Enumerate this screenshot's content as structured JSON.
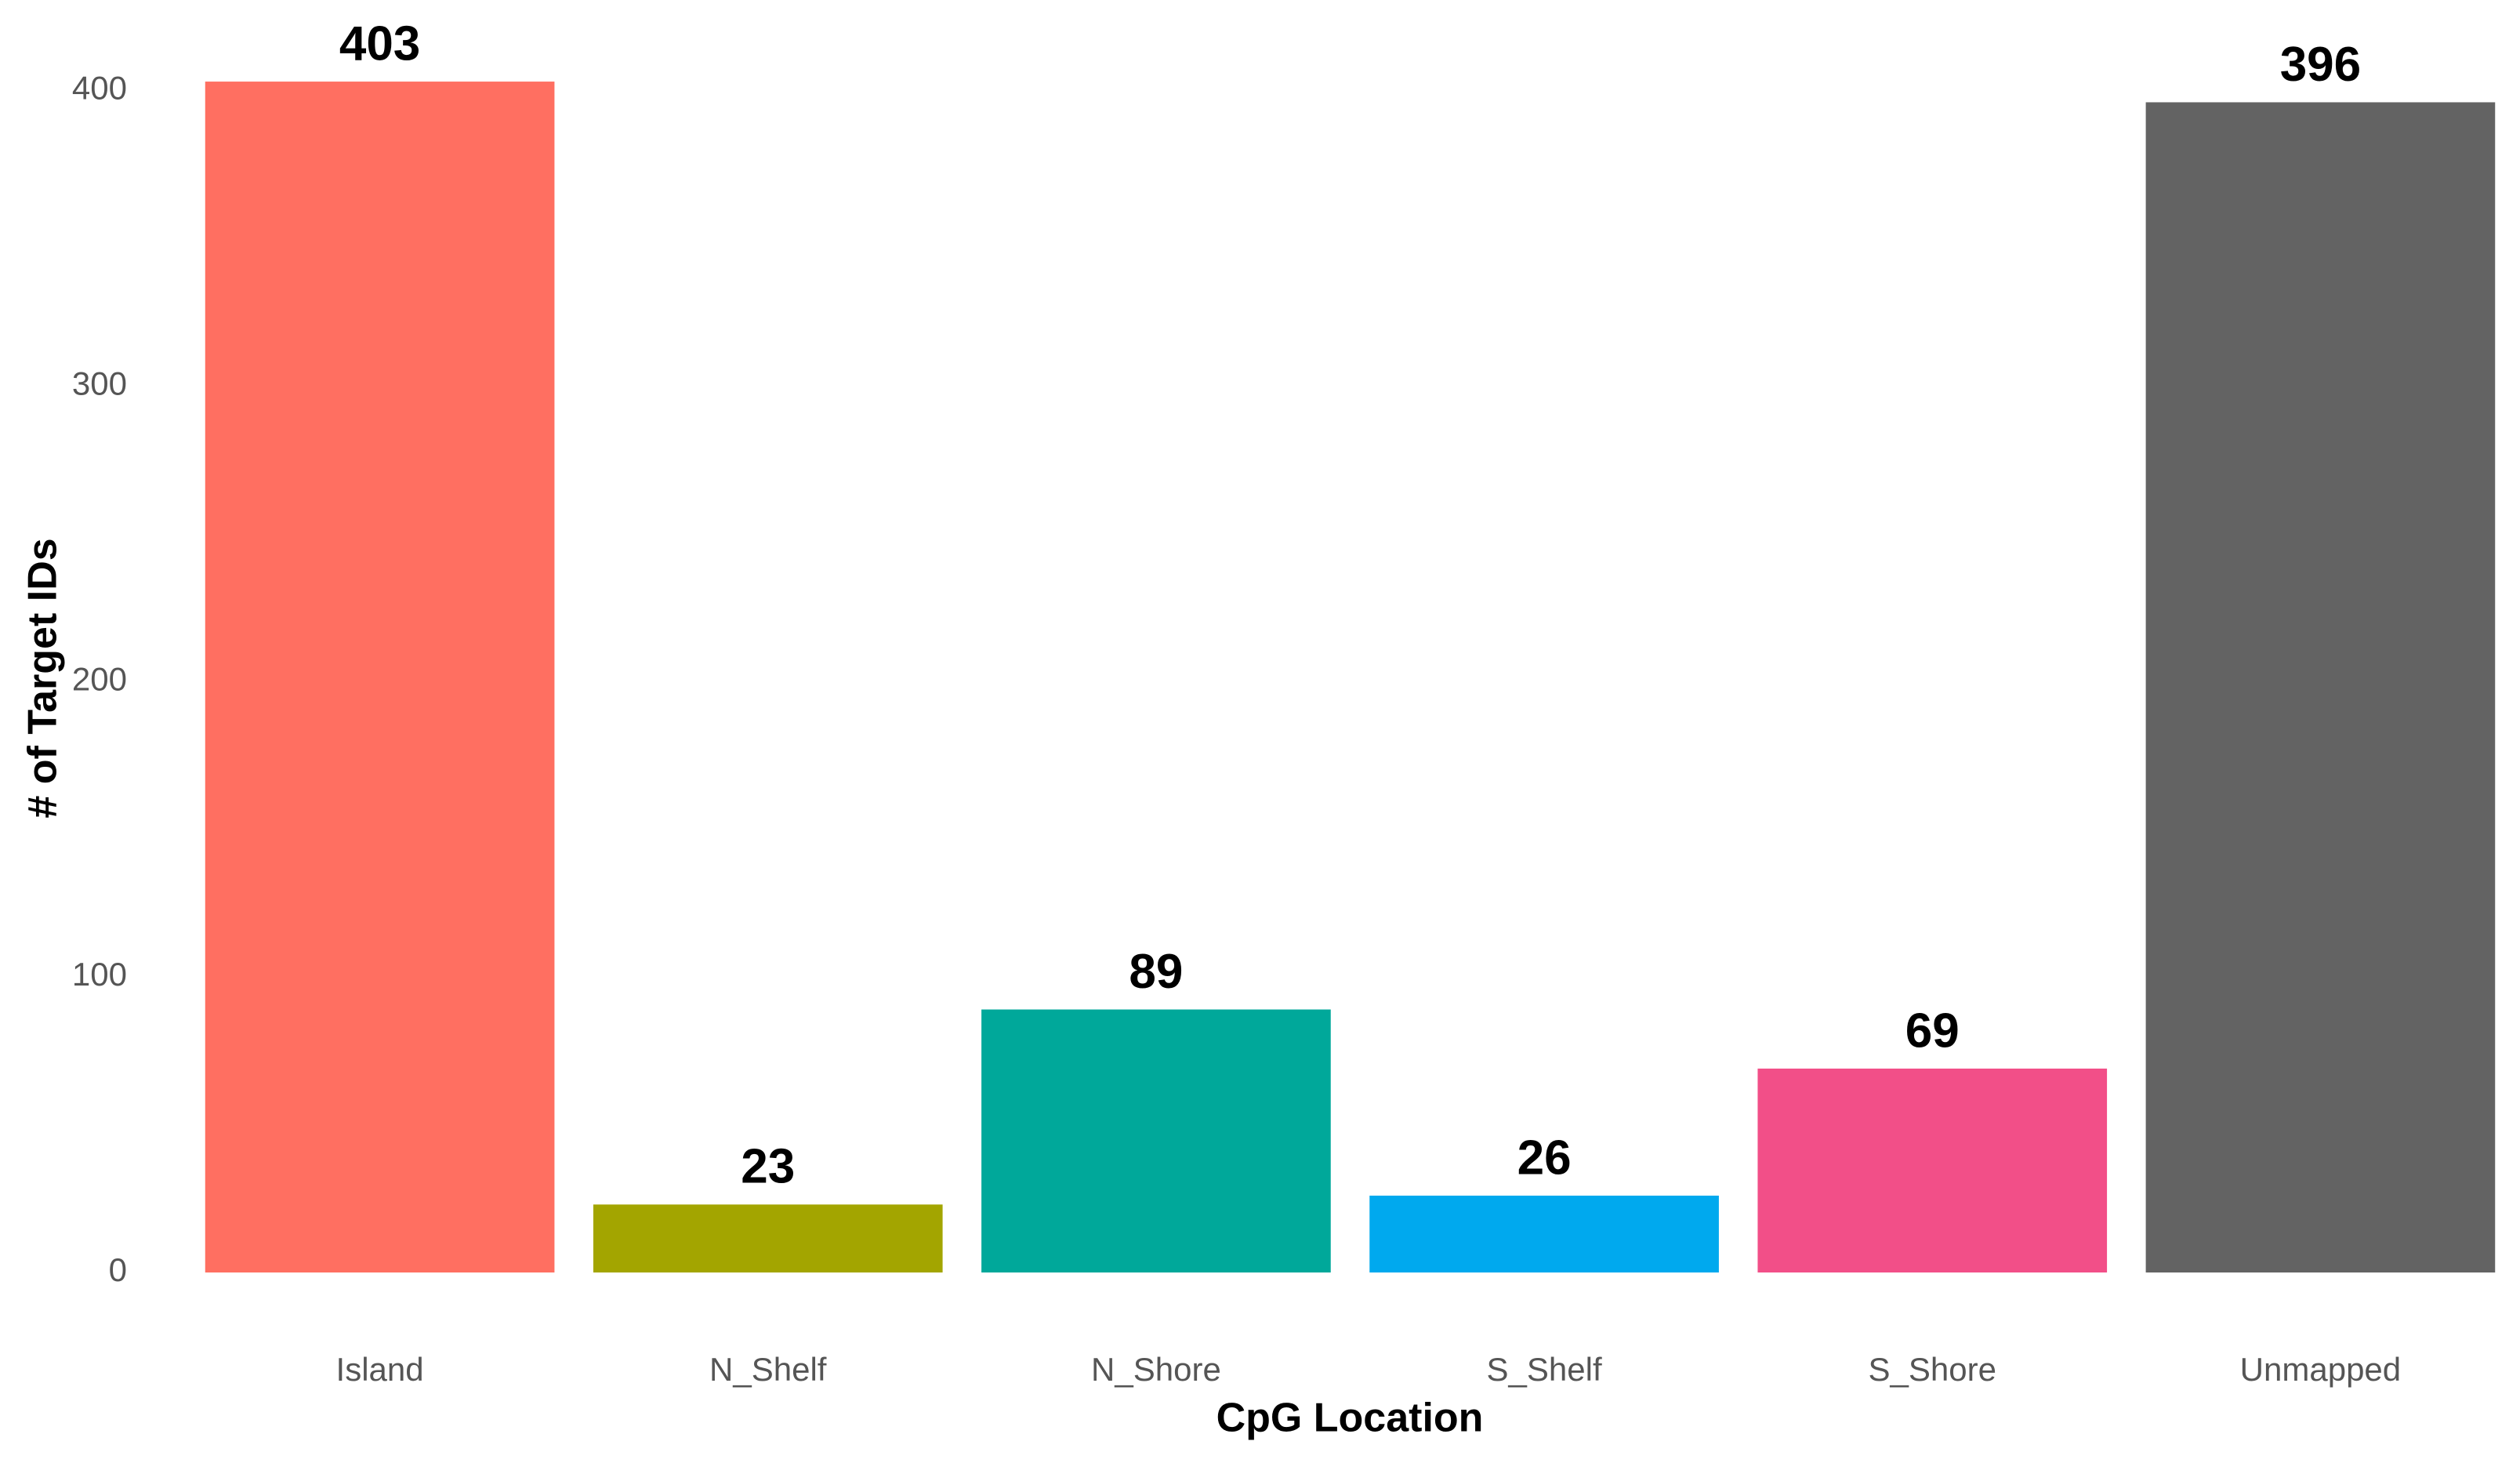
{
  "chart_data": {
    "type": "bar",
    "x_label": "CpG Location",
    "y_label": "# of Target IDs",
    "categories": [
      "Island",
      "N_Shelf",
      "N_Shore",
      "S_Shelf",
      "S_Shore",
      "Unmapped"
    ],
    "values": [
      403,
      23,
      89,
      26,
      69,
      396
    ],
    "colors": [
      "#FF6F61",
      "#A3A500",
      "#00A89A",
      "#00A9EE",
      "#F24F88",
      "#636363"
    ],
    "ylim": [
      0,
      420
    ],
    "yticks": [
      0,
      100,
      200,
      300,
      400
    ],
    "grid": false
  }
}
